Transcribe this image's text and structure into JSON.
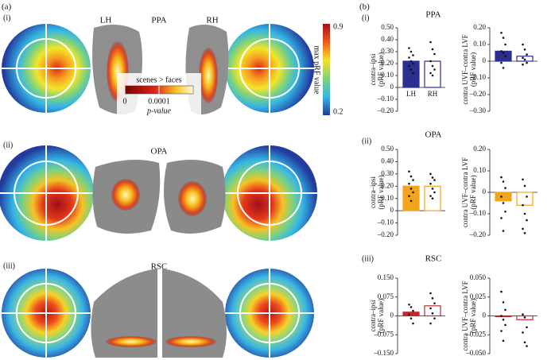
{
  "figure_a": {
    "label": "(a)",
    "rows": [
      {
        "label": "(i)",
        "title": "PPA"
      },
      {
        "label": "(ii)",
        "title": "OPA"
      },
      {
        "label": "(iii)",
        "title": "RSC"
      }
    ],
    "hemi_left": "LH",
    "hemi_right": "RH",
    "colorbar": {
      "label": "max pRF value",
      "ticks": [
        0.9,
        0.2
      ]
    },
    "pvalue_bar": {
      "title": "scenes > faces",
      "ticks": [
        0,
        0.0001
      ],
      "label": "p-value"
    }
  },
  "figure_b": {
    "label": "(b)",
    "rows": [
      {
        "label": "(i)",
        "title": "PPA"
      },
      {
        "label": "(ii)",
        "title": "OPA"
      },
      {
        "label": "(iii)",
        "title": "RSC"
      }
    ]
  },
  "chart_data": [
    {
      "type": "bar",
      "ylabel": "contra–ipsi",
      "ylabel_unit": "(pRF value)",
      "categories": [
        "LH",
        "RH"
      ],
      "values": [
        0.22,
        0.22
      ],
      "color": "#2b2f8f",
      "filled": [
        true,
        false
      ],
      "points": [
        [
          0.33,
          0.3,
          0.27,
          0.25,
          0.22,
          0.2,
          0.18,
          0.15,
          0.12
        ],
        [
          0.38,
          0.32,
          0.28,
          0.22,
          0.18,
          0.15,
          0.12,
          0.1
        ]
      ],
      "ylim": [
        -0.2,
        0.5
      ],
      "yticks": [
        {
          "value": 0.5,
          "label": "0.50"
        },
        {
          "value": 0.4,
          "label": "0.40"
        },
        {
          "value": 0.3,
          "label": "0.30"
        },
        {
          "value": 0.2,
          "label": "0.20"
        },
        {
          "value": 0.1,
          "label": "0.10"
        },
        0,
        {
          "value": -0.1,
          "label": "–0.10"
        },
        {
          "value": -0.2,
          "label": "–0.20"
        }
      ]
    },
    {
      "type": "bar",
      "ylabel": "contra UVF–contra LVF",
      "ylabel_unit": "(pRF value)",
      "categories": [
        null,
        null
      ],
      "values": [
        0.06,
        0.03
      ],
      "color": "#2b2f8f",
      "filled": [
        true,
        false
      ],
      "points": [
        [
          0.17,
          0.14,
          0.1,
          0.06,
          0.05,
          0.03,
          -0.01,
          -0.04
        ],
        [
          0.1,
          0.07,
          0.04,
          0.02,
          0.01,
          -0.01,
          -0.02
        ]
      ],
      "ylim": [
        -0.3,
        0.2
      ],
      "yticks": [
        {
          "value": 0.2,
          "label": "0.20"
        },
        {
          "value": 0.1,
          "label": "0.10"
        },
        0,
        {
          "value": -0.1,
          "label": "–0.10"
        },
        {
          "value": -0.2,
          "label": "–0.20"
        },
        {
          "value": -0.3,
          "label": "–0.30"
        }
      ]
    },
    {
      "type": "bar",
      "ylabel": "contra–ipsi",
      "ylabel_unit": "(pRF value)",
      "categories": [
        null,
        null
      ],
      "values": [
        0.2,
        0.2
      ],
      "color": "#f2a51c",
      "filled": [
        true,
        false
      ],
      "points": [
        [
          0.32,
          0.28,
          0.25,
          0.22,
          0.18,
          0.15,
          0.12,
          0.08
        ],
        [
          0.3,
          0.27,
          0.25,
          0.22,
          0.18,
          0.15,
          0.12,
          0.1
        ]
      ],
      "ylim": [
        -0.2,
        0.5
      ],
      "yticks": [
        {
          "value": 0.5,
          "label": "0.50"
        },
        {
          "value": 0.4,
          "label": "0.40"
        },
        {
          "value": 0.3,
          "label": "0.30"
        },
        {
          "value": 0.2,
          "label": "0.20"
        },
        {
          "value": 0.1,
          "label": "0.10"
        },
        0,
        {
          "value": -0.1,
          "label": "–0.10"
        },
        {
          "value": -0.2,
          "label": "–0.20"
        }
      ]
    },
    {
      "type": "bar",
      "ylabel": "contra UVF–contra LVF",
      "ylabel_unit": "(pRF value)",
      "categories": [
        null,
        null
      ],
      "values": [
        -0.04,
        -0.06
      ],
      "color": "#f2a51c",
      "filled": [
        true,
        false
      ],
      "points": [
        [
          0.07,
          0.05,
          0.02,
          -0.02,
          -0.05,
          -0.09,
          -0.12,
          -0.18
        ],
        [
          0.06,
          0.03,
          -0.02,
          -0.06,
          -0.1,
          -0.13,
          -0.17,
          -0.19
        ]
      ],
      "ylim": [
        -0.2,
        0.2
      ],
      "yticks": [
        {
          "value": 0.2,
          "label": "0.20"
        },
        {
          "value": 0.1,
          "label": "0.10"
        },
        0,
        {
          "value": -0.1,
          "label": "–0.10"
        },
        {
          "value": -0.2,
          "label": "–0.20"
        }
      ]
    },
    {
      "type": "bar",
      "ylabel": "contra–ipsi",
      "ylabel_unit": "(pRF value)",
      "categories": [
        null,
        null
      ],
      "values": [
        0.015,
        0.04
      ],
      "color": "#c0282d",
      "filled": [
        true,
        false
      ],
      "points": [
        [
          0.045,
          0.035,
          0.02,
          0.005,
          -0.01,
          -0.03
        ],
        [
          0.09,
          0.07,
          0.05,
          0.03,
          0.01,
          -0.01,
          -0.03
        ]
      ],
      "ylim": [
        -0.15,
        0.15
      ],
      "yticks": [
        {
          "value": 0.15,
          "label": "0.150"
        },
        {
          "value": 0.075,
          "label": "0.075"
        },
        0,
        {
          "value": -0.075,
          "label": "–0.075"
        },
        {
          "value": -0.15,
          "label": "–0.150"
        }
      ]
    },
    {
      "type": "bar",
      "ylabel": "contra UVF–contra LVF",
      "ylabel_unit": "(pRF value)",
      "categories": [
        null,
        null
      ],
      "values": [
        -0.001,
        -0.005
      ],
      "color": "#c0282d",
      "filled": [
        true,
        false
      ],
      "points": [
        [
          0.032,
          0.018,
          0.008,
          0.0,
          -0.005,
          -0.012,
          -0.02,
          -0.033
        ],
        [
          0.002,
          -0.002,
          -0.015,
          -0.022,
          -0.035,
          -0.04
        ]
      ],
      "ylim": [
        -0.05,
        0.05
      ],
      "yticks": [
        {
          "value": 0.05,
          "label": "0.050"
        },
        {
          "value": 0.025,
          "label": "0.025"
        },
        0,
        {
          "value": -0.025,
          "label": "–0.025"
        },
        {
          "value": -0.05,
          "label": "–0.050"
        }
      ]
    }
  ]
}
